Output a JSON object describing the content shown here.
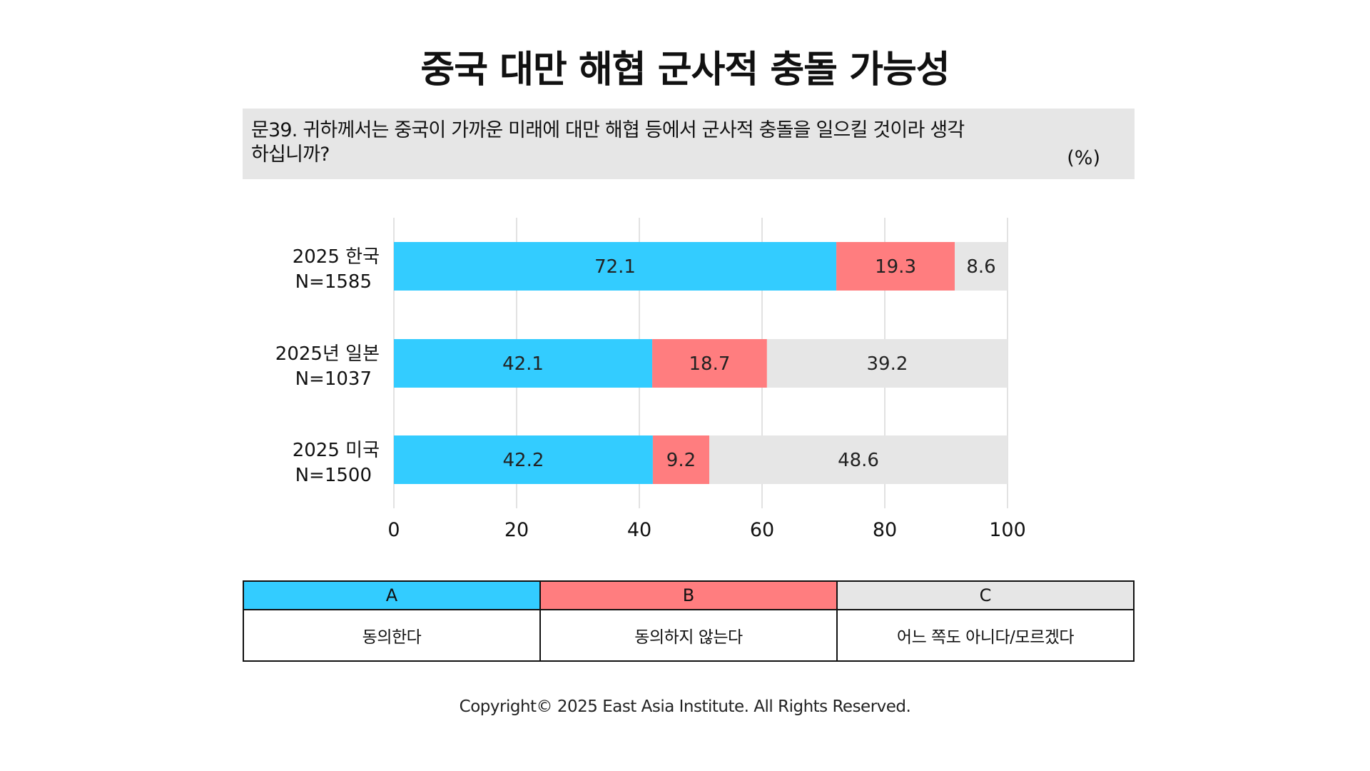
{
  "title": "중국 대만 해협 군사적 충돌 가능성",
  "question": "문39. 귀하께서는 중국이 가까운 미래에 대만 해협 등에서 군사적 충돌을 일으킬 것이라 생각하십니까?",
  "unit": "(%)",
  "colors": {
    "A": "#33ccff",
    "B": "#ff7d7f",
    "C": "#e6e6e6",
    "grid": "#d9d9d9"
  },
  "chart_data": {
    "type": "bar",
    "orientation": "horizontal",
    "stacked": true,
    "categories": [
      [
        "2025 한국",
        "N=1585"
      ],
      [
        "2025년 일본",
        "N=1037"
      ],
      [
        "2025 미국",
        "N=1500"
      ]
    ],
    "series": [
      {
        "name": "A",
        "values": [
          72.1,
          42.1,
          42.2
        ]
      },
      {
        "name": "B",
        "values": [
          19.3,
          18.7,
          9.2
        ]
      },
      {
        "name": "C",
        "values": [
          8.6,
          39.2,
          48.6
        ]
      }
    ],
    "xlim": [
      0,
      100
    ],
    "xticks": [
      "0",
      "20",
      "40",
      "60",
      "80",
      "100"
    ],
    "grid": true
  },
  "legend": [
    {
      "key": "A",
      "label": "동의한다"
    },
    {
      "key": "B",
      "label": "동의하지 않는다"
    },
    {
      "key": "C",
      "label": "어느 쪽도 아니다/모르겠다"
    }
  ],
  "copyright": "Copyright© 2025 East Asia Institute. All Rights Reserved."
}
